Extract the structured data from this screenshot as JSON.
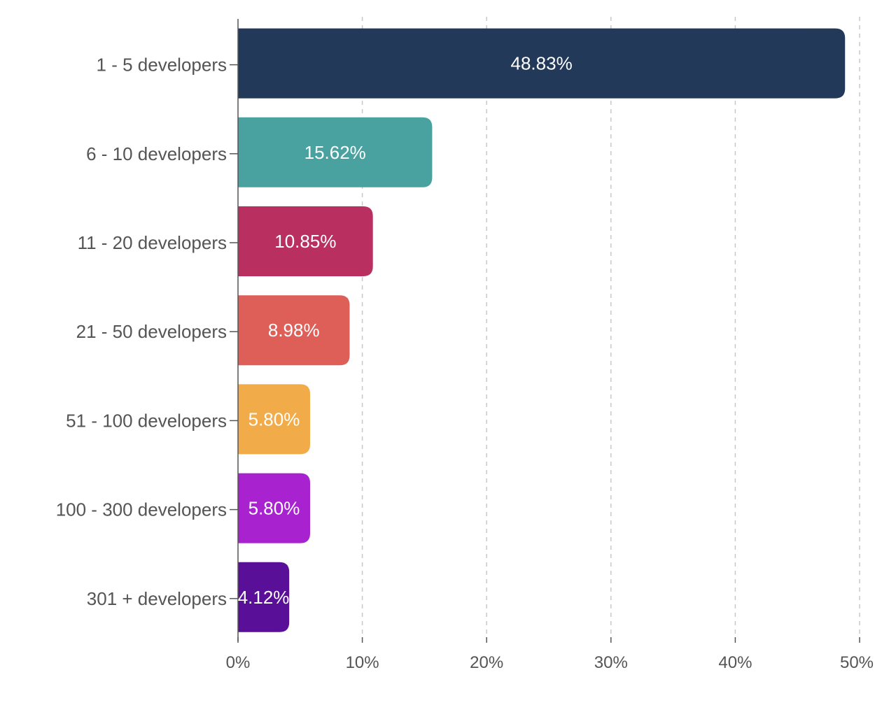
{
  "chart_data": {
    "type": "bar",
    "orientation": "horizontal",
    "categories": [
      "1 - 5  developers",
      "6 - 10  developers",
      "11 - 20  developers",
      "21 - 50  developers",
      "51 - 100  developers",
      "100 - 300  developers",
      "301 +  developers"
    ],
    "values": [
      48.83,
      15.62,
      10.85,
      8.98,
      5.8,
      5.8,
      4.12
    ],
    "value_labels": [
      "48.83%",
      "15.62%",
      "10.85%",
      "8.98%",
      "5.80%",
      "5.80%",
      "4.12%"
    ],
    "colors": [
      "#22395a",
      "#49a2a0",
      "#b93060",
      "#de5f58",
      "#f2ab49",
      "#a822d0",
      "#5a0f98"
    ],
    "xlim": [
      0,
      50
    ],
    "xticks": [
      0,
      10,
      20,
      30,
      40,
      50
    ],
    "xtick_labels": [
      "0%",
      "10%",
      "20%",
      "30%",
      "40%",
      "50%"
    ],
    "grid": "vertical-dashed",
    "title": "",
    "xlabel": "",
    "ylabel": ""
  }
}
